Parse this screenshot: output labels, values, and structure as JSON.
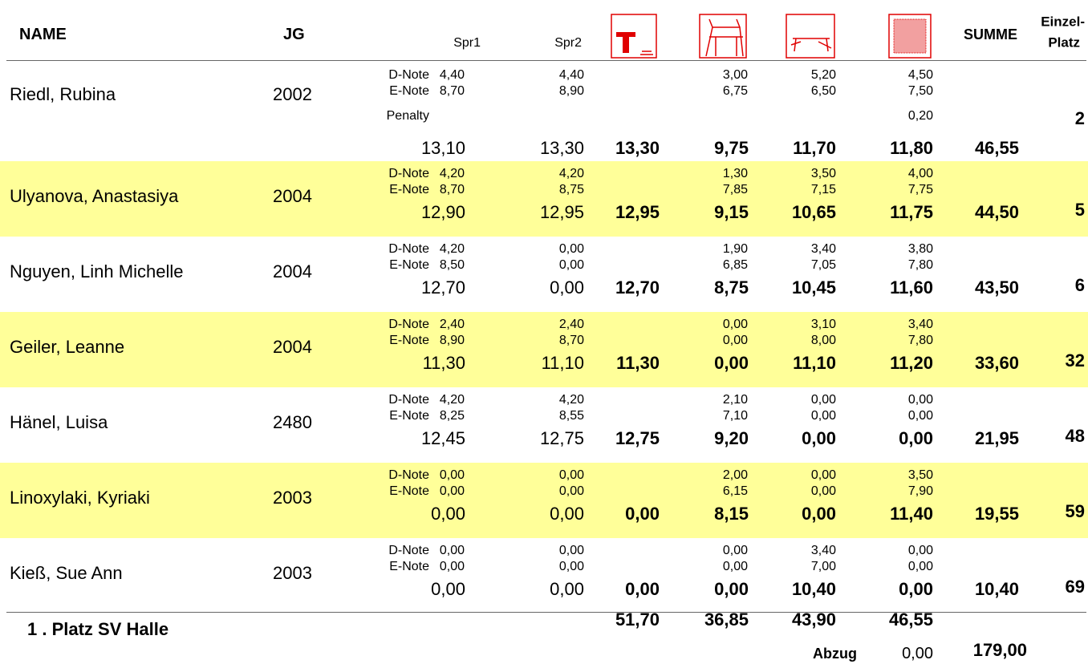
{
  "header": {
    "name": "NAME",
    "jg": "JG",
    "spr1": "Spr1",
    "spr2": "Spr2",
    "summe": "SUMME",
    "platz": [
      "Einzel-",
      "Platz"
    ]
  },
  "athletes": [
    {
      "name": "Riedl, Rubina",
      "jg": "2002",
      "notes": [
        {
          "label": "D-Note",
          "spr1": "4,40",
          "spr2": "4,40",
          "bars": "3,00",
          "beam": "5,20",
          "floor": "4,50"
        },
        {
          "label": "E-Note",
          "spr1": "8,70",
          "spr2": "8,90",
          "bars": "6,75",
          "beam": "6,50",
          "floor": "7,50"
        },
        {
          "label": "Penalty",
          "floor": "0,20"
        }
      ],
      "totals": {
        "spr1": "13,10",
        "spr2": "13,30",
        "vault": "13,30",
        "bars": "9,75",
        "beam": "11,70",
        "floor": "11,80",
        "summe": "46,55"
      },
      "platz": "2"
    },
    {
      "name": "Ulyanova, Anastasiya",
      "jg": "2004",
      "notes": [
        {
          "label": "D-Note",
          "spr1": "4,20",
          "spr2": "4,20",
          "bars": "1,30",
          "beam": "3,50",
          "floor": "4,00"
        },
        {
          "label": "E-Note",
          "spr1": "8,70",
          "spr2": "8,75",
          "bars": "7,85",
          "beam": "7,15",
          "floor": "7,75"
        }
      ],
      "totals": {
        "spr1": "12,90",
        "spr2": "12,95",
        "vault": "12,95",
        "bars": "9,15",
        "beam": "10,65",
        "floor": "11,75",
        "summe": "44,50"
      },
      "platz": "5"
    },
    {
      "name": "Nguyen, Linh Michelle",
      "jg": "2004",
      "notes": [
        {
          "label": "D-Note",
          "spr1": "4,20",
          "spr2": "0,00",
          "bars": "1,90",
          "beam": "3,40",
          "floor": "3,80"
        },
        {
          "label": "E-Note",
          "spr1": "8,50",
          "spr2": "0,00",
          "bars": "6,85",
          "beam": "7,05",
          "floor": "7,80"
        }
      ],
      "totals": {
        "spr1": "12,70",
        "spr2": "0,00",
        "vault": "12,70",
        "bars": "8,75",
        "beam": "10,45",
        "floor": "11,60",
        "summe": "43,50"
      },
      "platz": "6"
    },
    {
      "name": "Geiler, Leanne",
      "jg": "2004",
      "notes": [
        {
          "label": "D-Note",
          "spr1": "2,40",
          "spr2": "2,40",
          "bars": "0,00",
          "beam": "3,10",
          "floor": "3,40"
        },
        {
          "label": "E-Note",
          "spr1": "8,90",
          "spr2": "8,70",
          "bars": "0,00",
          "beam": "8,00",
          "floor": "7,80"
        }
      ],
      "totals": {
        "spr1": "11,30",
        "spr2": "11,10",
        "vault": "11,30",
        "bars": "0,00",
        "beam": "11,10",
        "floor": "11,20",
        "summe": "33,60"
      },
      "platz": "32"
    },
    {
      "name": "Hänel, Luisa",
      "jg": "2480",
      "notes": [
        {
          "label": "D-Note",
          "spr1": "4,20",
          "spr2": "4,20",
          "bars": "2,10",
          "beam": "0,00",
          "floor": "0,00"
        },
        {
          "label": "E-Note",
          "spr1": "8,25",
          "spr2": "8,55",
          "bars": "7,10",
          "beam": "0,00",
          "floor": "0,00"
        }
      ],
      "totals": {
        "spr1": "12,45",
        "spr2": "12,75",
        "vault": "12,75",
        "bars": "9,20",
        "beam": "0,00",
        "floor": "0,00",
        "summe": "21,95"
      },
      "platz": "48"
    },
    {
      "name": "Linoxylaki, Kyriaki",
      "jg": "2003",
      "notes": [
        {
          "label": "D-Note",
          "spr1": "0,00",
          "spr2": "0,00",
          "bars": "2,00",
          "beam": "0,00",
          "floor": "3,50"
        },
        {
          "label": "E-Note",
          "spr1": "0,00",
          "spr2": "0,00",
          "bars": "6,15",
          "beam": "0,00",
          "floor": "7,90"
        }
      ],
      "totals": {
        "spr1": "0,00",
        "spr2": "0,00",
        "vault": "0,00",
        "bars": "8,15",
        "beam": "0,00",
        "floor": "11,40",
        "summe": "19,55"
      },
      "platz": "59"
    },
    {
      "name": "Kieß, Sue Ann",
      "jg": "2003",
      "notes": [
        {
          "label": "D-Note",
          "spr1": "0,00",
          "spr2": "0,00",
          "bars": "0,00",
          "beam": "3,40",
          "floor": "0,00"
        },
        {
          "label": "E-Note",
          "spr1": "0,00",
          "spr2": "0,00",
          "bars": "0,00",
          "beam": "7,00",
          "floor": "0,00"
        }
      ],
      "totals": {
        "spr1": "0,00",
        "spr2": "0,00",
        "vault": "0,00",
        "bars": "0,00",
        "beam": "10,40",
        "floor": "0,00",
        "summe": "10,40"
      },
      "platz": "69"
    }
  ],
  "footer": {
    "title": "1 . Platz SV Halle",
    "totals": {
      "vault": "51,70",
      "bars": "36,85",
      "beam": "43,90",
      "floor": "46,55"
    },
    "abzug_label": "Abzug",
    "abzug": "0,00",
    "total": "179,00"
  }
}
